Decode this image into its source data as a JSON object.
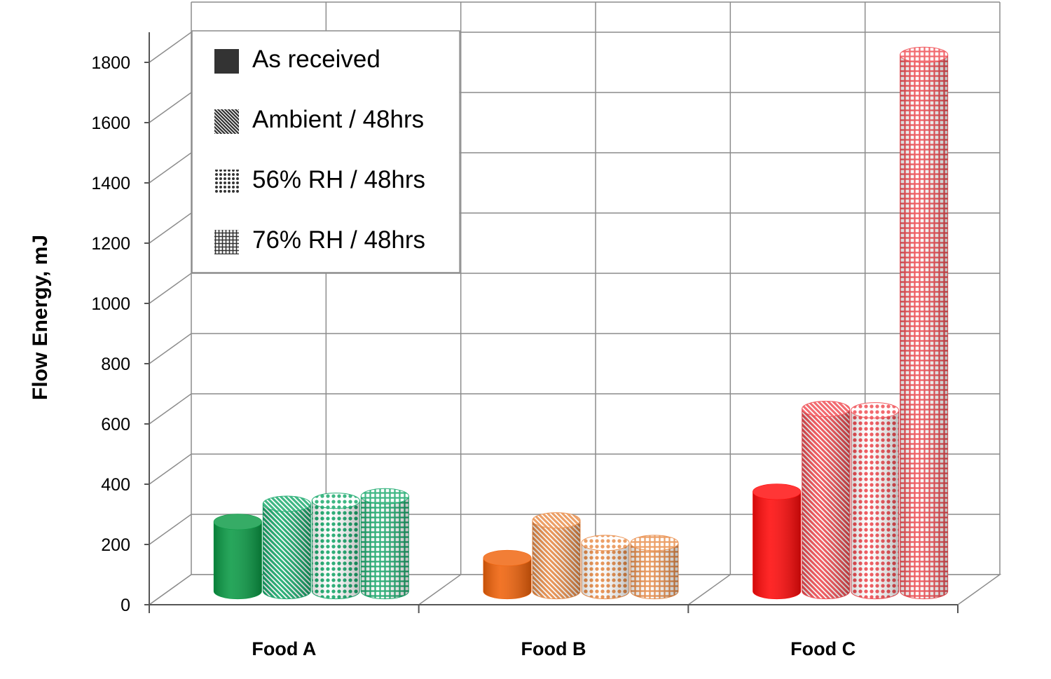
{
  "chart_data": {
    "type": "bar",
    "style": "3d-cylinder",
    "categories": [
      "Food A",
      "Food B",
      "Food C"
    ],
    "series": [
      {
        "name": "As received",
        "pattern": "solid",
        "values": [
          230,
          110,
          330
        ]
      },
      {
        "name": "Ambient / 48hrs",
        "pattern": "diagonal",
        "values": [
          290,
          235,
          605
        ]
      },
      {
        "name": "56% RH / 48hrs",
        "pattern": "dots",
        "values": [
          300,
          160,
          600
        ]
      },
      {
        "name": "76% RH / 48hrs",
        "pattern": "grid",
        "values": [
          315,
          160,
          1780
        ]
      }
    ],
    "category_colors": [
      "#0a9a45",
      "#f0620a",
      "#ff0a0a"
    ],
    "category_light_colors": [
      "#15a86a",
      "#e88a45",
      "#f04a50"
    ],
    "ylabel": "Flow Energy, mJ",
    "xlabel": "",
    "title": "",
    "ylim": [
      0,
      1800
    ],
    "yticks": [
      0,
      200,
      400,
      600,
      800,
      1000,
      1200,
      1400,
      1600,
      1800
    ],
    "grid": true,
    "legend_position": "top-left"
  }
}
